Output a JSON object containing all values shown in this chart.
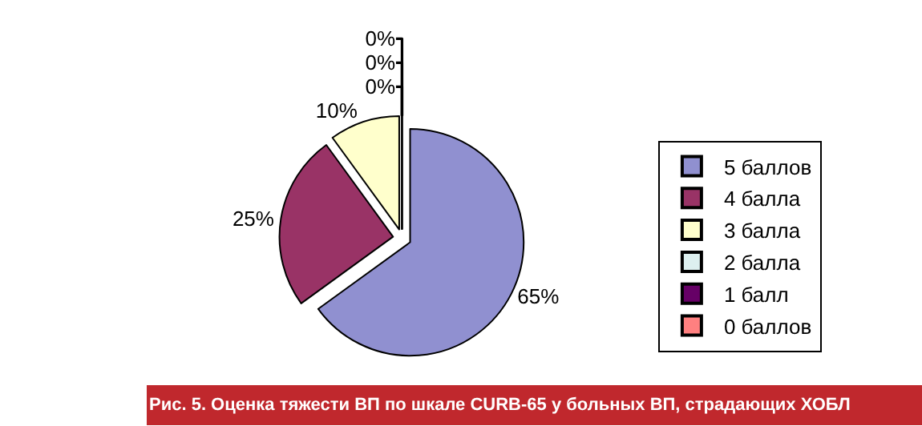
{
  "chart_data": {
    "type": "pie",
    "title": "Рис. 5. Оценка тяжести ВП по шкале CURB-65 у больных ВП, страдающих ХОБЛ",
    "categories": [
      "5 баллов",
      "4 балла",
      "3 балла",
      "2 балла",
      "1 балл",
      "0 баллов"
    ],
    "values": [
      65,
      25,
      10,
      0,
      0,
      0
    ],
    "colors": [
      "#9090d0",
      "#993366",
      "#ffffcc",
      "#ddf0f0",
      "#660066",
      "#ff8080"
    ],
    "value_labels": [
      "65%",
      "25%",
      "10%",
      "0%",
      "0%",
      "0%"
    ],
    "legend": "right"
  }
}
